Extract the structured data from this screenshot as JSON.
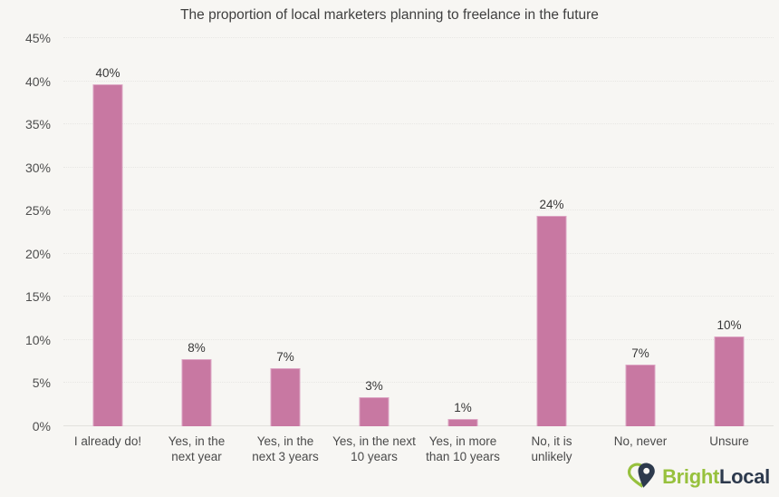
{
  "chart_data": {
    "type": "bar",
    "title": "The proportion of local marketers planning to freelance in the future",
    "categories": [
      "I already do!",
      "Yes, in the next year",
      "Yes, in the next 3 years",
      "Yes, in the next 10 years",
      "Yes, in more than 10 years",
      "No, it is unlikely",
      "No, never",
      "Unsure"
    ],
    "category_label_lines": [
      [
        "I already do!"
      ],
      [
        "Yes, in the",
        "next year"
      ],
      [
        "Yes, in the",
        "next 3 years"
      ],
      [
        "Yes, in the next",
        "10 years"
      ],
      [
        "Yes, in more",
        "than 10 years"
      ],
      [
        "No, it is",
        "unlikely"
      ],
      [
        "No, never"
      ],
      [
        "Unsure"
      ]
    ],
    "values": [
      40,
      8,
      7,
      3,
      1,
      24,
      7,
      10
    ],
    "value_labels": [
      "40%",
      "8%",
      "7%",
      "3%",
      "1%",
      "24%",
      "7%",
      "10%"
    ],
    "precise_bar_heights": [
      39.6,
      7.8,
      6.7,
      3.4,
      0.8,
      24.4,
      7.1,
      10.4
    ],
    "xlabel": "",
    "ylabel": "",
    "ylim": [
      0,
      45
    ],
    "y_tick_step": 5,
    "y_tick_labels": [
      "0%",
      "5%",
      "10%",
      "15%",
      "20%",
      "25%",
      "30%",
      "35%",
      "40%",
      "45%"
    ],
    "grid": "faint dotted horizontal gridlines, solid baseline",
    "legend": "none",
    "colors": {
      "bar": "#c878a2",
      "bar_border": "#dda6c4",
      "background": "#f7f6f3",
      "text": "#4a4a4a",
      "baseline": "#e2e1dd"
    }
  },
  "logo": {
    "text_green": "Bright",
    "text_navy": "Local",
    "icon": "map-pin-double",
    "color_green": "#97c13d",
    "color_navy": "#2d3a4d"
  }
}
